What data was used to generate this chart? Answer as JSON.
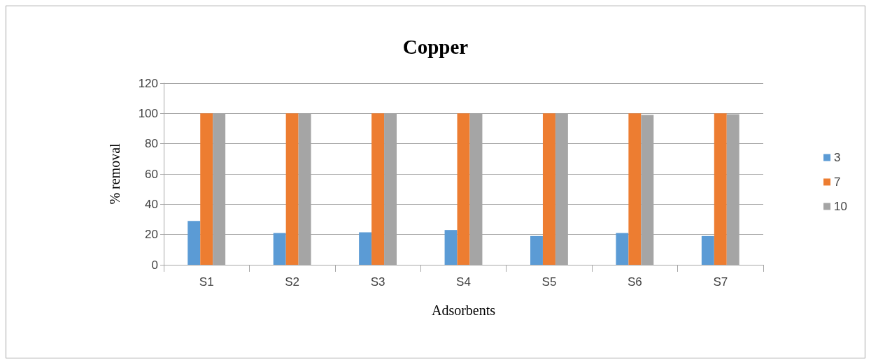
{
  "chart_data": {
    "type": "bar",
    "title": "Copper",
    "xlabel": "Adsorbents",
    "ylabel": "% removal",
    "categories": [
      "S1",
      "S2",
      "S3",
      "S4",
      "S5",
      "S6",
      "S7"
    ],
    "series": [
      {
        "name": "3",
        "color": "#5b9bd5",
        "values": [
          29,
          21,
          21.5,
          23,
          19,
          21,
          19
        ]
      },
      {
        "name": "7",
        "color": "#ed7d31",
        "values": [
          100,
          100,
          100,
          100,
          100,
          100,
          100
        ]
      },
      {
        "name": "10",
        "color": "#a5a5a5",
        "values": [
          100,
          100,
          100,
          100,
          100,
          99,
          99.5
        ]
      }
    ],
    "ylim": [
      0,
      120
    ],
    "yticks": [
      0,
      20,
      40,
      60,
      80,
      100,
      120
    ],
    "grid": "y",
    "legend": "right"
  }
}
